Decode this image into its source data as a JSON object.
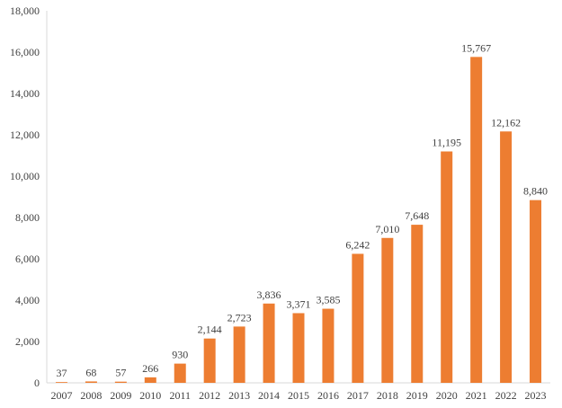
{
  "chart_data": {
    "type": "bar",
    "title": "",
    "xlabel": "",
    "ylabel": "",
    "categories": [
      "2007",
      "2008",
      "2009",
      "2010",
      "2011",
      "2012",
      "2013",
      "2014",
      "2015",
      "2016",
      "2017",
      "2018",
      "2019",
      "2020",
      "2021",
      "2022",
      "2023"
    ],
    "values": [
      37,
      68,
      57,
      266,
      930,
      2144,
      2723,
      3836,
      3371,
      3585,
      6242,
      7010,
      7648,
      11195,
      15767,
      12162,
      8840
    ],
    "data_labels": [
      "37",
      "68",
      "57",
      "266",
      "930",
      "2,144",
      "2,723",
      "3,836",
      "3,371",
      "3,585",
      "6,242",
      "7,010",
      "7,648",
      "11,195",
      "15,767",
      "12,162",
      "8,840"
    ],
    "ylim": [
      0,
      18000
    ],
    "yticks": [
      0,
      2000,
      4000,
      6000,
      8000,
      10000,
      12000,
      14000,
      16000,
      18000
    ],
    "ytick_labels": [
      "0",
      "2,000",
      "4,000",
      "6,000",
      "8,000",
      "10,000",
      "12,000",
      "14,000",
      "16,000",
      "18,000"
    ],
    "grid": false,
    "legend": "none",
    "bar_color": "#ED7D31",
    "axis_color": "#D9D9D9",
    "text_color": "#404040"
  }
}
